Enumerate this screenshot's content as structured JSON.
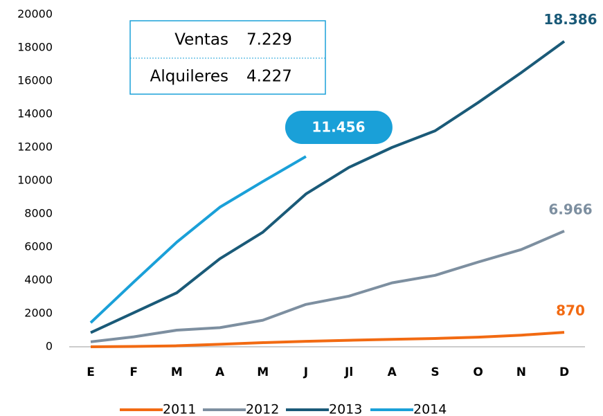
{
  "chart_data": {
    "type": "line",
    "categories": [
      "E",
      "F",
      "M",
      "A",
      "M",
      "J",
      "Jl",
      "A",
      "S",
      "O",
      "N",
      "D"
    ],
    "series": [
      {
        "name": "2011",
        "color": "#f26a12",
        "values": [
          0,
          20,
          60,
          150,
          250,
          330,
          390,
          450,
          500,
          580,
          700,
          870
        ],
        "value_labels": [
          null,
          null,
          null,
          null,
          null,
          null,
          null,
          null,
          null,
          null,
          null,
          "870"
        ]
      },
      {
        "name": "2012",
        "color": "#7d8fa0",
        "values": [
          300,
          600,
          1000,
          1150,
          1600,
          2550,
          3050,
          3850,
          4300,
          5100,
          5850,
          6966
        ],
        "value_labels": [
          null,
          null,
          null,
          null,
          null,
          null,
          null,
          null,
          null,
          null,
          null,
          "6.966"
        ]
      },
      {
        "name": "2013",
        "color": "#1a5a78",
        "values": [
          850,
          2050,
          3250,
          5300,
          6900,
          9200,
          10800,
          12000,
          13000,
          14700,
          16500,
          18386
        ],
        "value_labels": [
          null,
          null,
          null,
          null,
          null,
          null,
          null,
          null,
          null,
          null,
          null,
          "18.386"
        ]
      },
      {
        "name": "2014",
        "color": "#1aa0d8",
        "values": [
          1450,
          3900,
          6300,
          8400,
          9950,
          11456,
          null,
          null,
          null,
          null,
          null,
          null
        ],
        "value_labels": [
          null,
          null,
          null,
          null,
          null,
          "11.456",
          null,
          null,
          null,
          null,
          null,
          null
        ]
      }
    ],
    "ylim": [
      0,
      20000
    ],
    "yticks": [
      0,
      2000,
      4000,
      6000,
      8000,
      10000,
      12000,
      14000,
      16000,
      18000,
      20000
    ],
    "breakdown": [
      {
        "label": "Ventas",
        "value": "7.229"
      },
      {
        "label": "Alquileres",
        "value": "4.227"
      }
    ],
    "legend": "bottom"
  }
}
